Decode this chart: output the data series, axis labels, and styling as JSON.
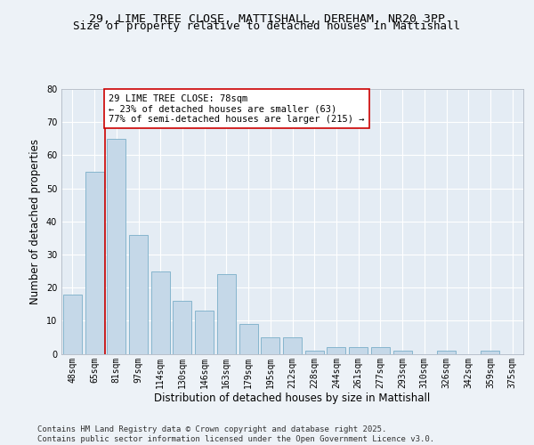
{
  "title_line1": "29, LIME TREE CLOSE, MATTISHALL, DEREHAM, NR20 3PP",
  "title_line2": "Size of property relative to detached houses in Mattishall",
  "xlabel": "Distribution of detached houses by size in Mattishall",
  "ylabel": "Number of detached properties",
  "categories": [
    "48sqm",
    "65sqm",
    "81sqm",
    "97sqm",
    "114sqm",
    "130sqm",
    "146sqm",
    "163sqm",
    "179sqm",
    "195sqm",
    "212sqm",
    "228sqm",
    "244sqm",
    "261sqm",
    "277sqm",
    "293sqm",
    "310sqm",
    "326sqm",
    "342sqm",
    "359sqm",
    "375sqm"
  ],
  "values": [
    18,
    55,
    65,
    36,
    25,
    16,
    13,
    24,
    9,
    5,
    5,
    1,
    2,
    2,
    2,
    1,
    0,
    1,
    0,
    1,
    0
  ],
  "bar_color": "#c5d8e8",
  "bar_edge_color": "#7aaec8",
  "vline_x_index": 1.5,
  "vline_color": "#cc0000",
  "annotation_text": "29 LIME TREE CLOSE: 78sqm\n← 23% of detached houses are smaller (63)\n77% of semi-detached houses are larger (215) →",
  "annotation_box_color": "#ffffff",
  "annotation_box_edge": "#cc0000",
  "ylim": [
    0,
    80
  ],
  "yticks": [
    0,
    10,
    20,
    30,
    40,
    50,
    60,
    70,
    80
  ],
  "footer_text": "Contains HM Land Registry data © Crown copyright and database right 2025.\nContains public sector information licensed under the Open Government Licence v3.0.",
  "background_color": "#edf2f7",
  "plot_bg_color": "#e4ecf4",
  "grid_color": "#ffffff",
  "title_fontsize": 9.5,
  "axis_label_fontsize": 8.5,
  "tick_fontsize": 7,
  "annotation_fontsize": 7.5,
  "footer_fontsize": 6.5
}
